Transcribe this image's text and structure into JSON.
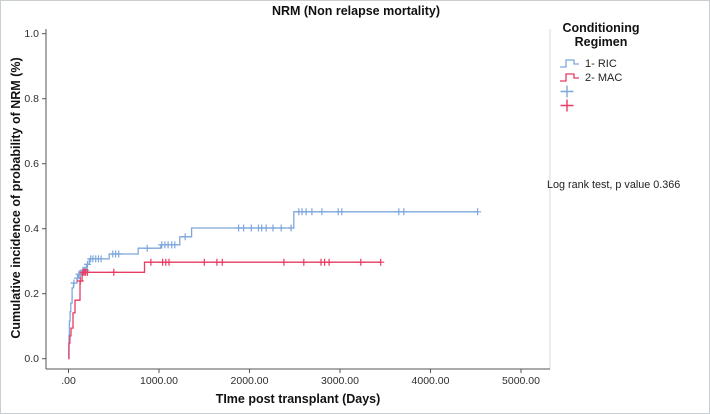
{
  "figure": {
    "title": "NRM (Non relapse mortality)",
    "x_axis_label": "TIme post transplant (Days)",
    "y_axis_label": "Cumulative incidence of probability of NRM (%)",
    "annotation": "Log rank test, p value 0.366"
  },
  "legend": {
    "title_line1": "Conditioning",
    "title_line2": "Regimen",
    "items": [
      {
        "label": "1- RIC",
        "color": "#7ea7db",
        "glyph": "step-line"
      },
      {
        "label": "2- MAC",
        "color": "#e73b62",
        "glyph": "step-line"
      },
      {
        "label": "",
        "color": "#7ea7db",
        "glyph": "censor-plus"
      },
      {
        "label": "",
        "color": "#e73b62",
        "glyph": "censor-plus"
      }
    ]
  },
  "colors": {
    "ric": "#7ea7db",
    "mac": "#e73b62",
    "axis": "#555555",
    "tick_text": "#2e2e2e",
    "plot_right_border": "#d9d9d9"
  },
  "chart_data": {
    "type": "line",
    "subtype": "cumulative-incidence-step",
    "title": "NRM (Non relapse mortality)",
    "xlabel": "TIme post transplant (Days)",
    "ylabel": "Cumulative incidence of probability of NRM (%)",
    "xlim": [
      0,
      5000
    ],
    "ylim": [
      0.0,
      1.0
    ],
    "grid": false,
    "legend_position": "right",
    "annotation": "Log rank test, p value 0.366",
    "x_ticks": {
      "values": [
        0,
        1000,
        2000,
        3000,
        4000,
        5000
      ],
      "labels": [
        ".00",
        "1000.00",
        "2000.00",
        "3000.00",
        "4000.00",
        "5000.00"
      ]
    },
    "y_ticks": {
      "values": [
        0.0,
        0.2,
        0.4,
        0.6,
        0.8,
        1.0
      ],
      "labels": [
        "0.0",
        "0.2",
        "0.4",
        "0.6",
        "0.8",
        "1.0"
      ]
    },
    "series": [
      {
        "name": "1- RIC",
        "color": "#7ea7db",
        "points": [
          [
            0,
            0
          ],
          [
            3,
            0.04
          ],
          [
            6,
            0.073
          ],
          [
            10,
            0.116
          ],
          [
            18,
            0.145
          ],
          [
            25,
            0.171
          ],
          [
            40,
            0.218
          ],
          [
            55,
            0.233
          ],
          [
            94,
            0.248
          ],
          [
            105,
            0.26
          ],
          [
            150,
            0.272
          ],
          [
            200,
            0.29
          ],
          [
            230,
            0.307
          ],
          [
            450,
            0.322
          ],
          [
            770,
            0.34
          ],
          [
            1020,
            0.35
          ],
          [
            1230,
            0.375
          ],
          [
            1360,
            0.402
          ],
          [
            2490,
            0.452
          ]
        ],
        "end_day": 4520,
        "final_value": 0.45,
        "censor_marks": [
          [
            60,
            0.233
          ],
          [
            100,
            0.248
          ],
          [
            115,
            0.26
          ],
          [
            130,
            0.26
          ],
          [
            160,
            0.272
          ],
          [
            175,
            0.272
          ],
          [
            190,
            0.272
          ],
          [
            210,
            0.29
          ],
          [
            245,
            0.307
          ],
          [
            270,
            0.307
          ],
          [
            300,
            0.307
          ],
          [
            330,
            0.307
          ],
          [
            360,
            0.307
          ],
          [
            490,
            0.322
          ],
          [
            520,
            0.322
          ],
          [
            555,
            0.322
          ],
          [
            870,
            0.34
          ],
          [
            1030,
            0.35
          ],
          [
            1065,
            0.35
          ],
          [
            1100,
            0.35
          ],
          [
            1140,
            0.35
          ],
          [
            1175,
            0.35
          ],
          [
            1290,
            0.375
          ],
          [
            1880,
            0.402
          ],
          [
            1935,
            0.402
          ],
          [
            2020,
            0.402
          ],
          [
            2100,
            0.402
          ],
          [
            2135,
            0.402
          ],
          [
            2185,
            0.402
          ],
          [
            2260,
            0.402
          ],
          [
            2350,
            0.402
          ],
          [
            2460,
            0.402
          ],
          [
            2545,
            0.452
          ],
          [
            2580,
            0.452
          ],
          [
            2625,
            0.452
          ],
          [
            2690,
            0.452
          ],
          [
            2800,
            0.452
          ],
          [
            2980,
            0.452
          ],
          [
            3020,
            0.452
          ],
          [
            3650,
            0.452
          ],
          [
            3705,
            0.452
          ],
          [
            4520,
            0.452
          ]
        ]
      },
      {
        "name": "2- MAC",
        "color": "#e73b62",
        "points": [
          [
            0,
            0
          ],
          [
            5,
            0.048
          ],
          [
            15,
            0.07
          ],
          [
            28,
            0.094
          ],
          [
            50,
            0.141
          ],
          [
            72,
            0.18
          ],
          [
            127,
            0.239
          ],
          [
            150,
            0.266
          ],
          [
            840,
            0.297
          ]
        ],
        "end_day": 3450,
        "final_value": 0.3,
        "censor_marks": [
          [
            130,
            0.239
          ],
          [
            160,
            0.266
          ],
          [
            175,
            0.266
          ],
          [
            190,
            0.266
          ],
          [
            210,
            0.266
          ],
          [
            500,
            0.266
          ],
          [
            910,
            0.297
          ],
          [
            1040,
            0.297
          ],
          [
            1075,
            0.297
          ],
          [
            1110,
            0.297
          ],
          [
            1500,
            0.297
          ],
          [
            1640,
            0.297
          ],
          [
            1700,
            0.297
          ],
          [
            2380,
            0.297
          ],
          [
            2600,
            0.297
          ],
          [
            2790,
            0.297
          ],
          [
            2830,
            0.297
          ],
          [
            2880,
            0.297
          ],
          [
            3230,
            0.297
          ],
          [
            3450,
            0.297
          ]
        ]
      }
    ]
  }
}
